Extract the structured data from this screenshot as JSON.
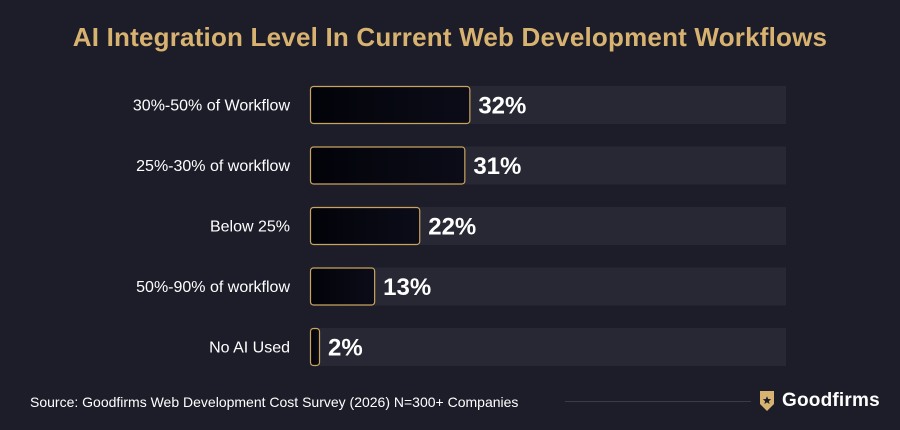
{
  "chart_data": {
    "type": "bar",
    "orientation": "horizontal",
    "title": "AI Integration Level In Current Web Development Workflows",
    "categories": [
      "30%-50% of Workflow",
      "25%-30% of workflow",
      "Below 25%",
      "50%-90% of workflow",
      "No AI Used"
    ],
    "values": [
      32,
      31,
      22,
      13,
      2
    ],
    "value_labels": [
      "32%",
      "31%",
      "22%",
      "13%",
      "2%"
    ],
    "xlim": [
      0,
      95
    ],
    "grid": false,
    "colors": {
      "background": "#1c1d29",
      "track": "#272833",
      "bar_fill": "#05060f",
      "bar_border": "#c9a45f",
      "title": "#d8b270"
    }
  },
  "footer": {
    "source": "Source: Goodfirms Web Development Cost Survey (2026) N=300+ Companies",
    "brand": "Goodfirms",
    "brand_icon": "shield-star-icon"
  }
}
